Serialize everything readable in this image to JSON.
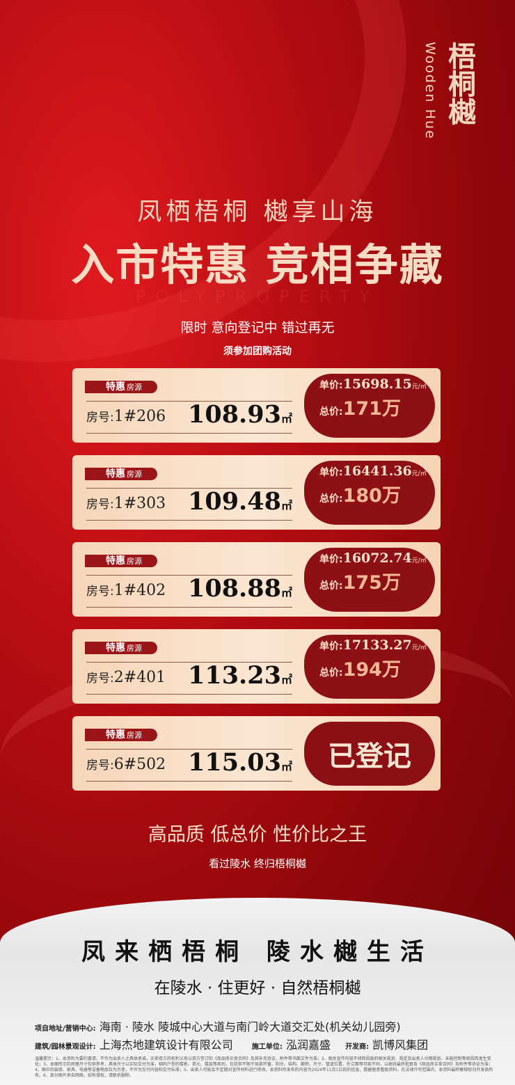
{
  "logo": {
    "english": "Wooden Hue",
    "chinese": "梧桐樾"
  },
  "headline": {
    "line1": "凤栖梧桐 樾享山海",
    "line2": "入市特惠 竞相争藏",
    "watermark": "POLYPROPERTY",
    "line3": "限时  意向登记中  错过再无",
    "line4": "须参加团购活动"
  },
  "card_labels": {
    "tag": "特惠",
    "tag_small": "房源",
    "room": "房号:",
    "unit_price": "单价:",
    "unit": "元/㎡",
    "total": "总价:",
    "area_unit": "㎡"
  },
  "listings": [
    {
      "room": "1#206",
      "area": "108.93",
      "unit_price": "15698.15",
      "total": "171万"
    },
    {
      "room": "1#303",
      "area": "109.48",
      "unit_price": "16441.36",
      "total": "180万"
    },
    {
      "room": "1#402",
      "area": "108.88",
      "unit_price": "16072.74",
      "total": "175万"
    },
    {
      "room": "2#401",
      "area": "113.23",
      "unit_price": "17133.27",
      "total": "194万"
    },
    {
      "room": "6#502",
      "area": "115.03",
      "status": "已登记"
    }
  ],
  "slogan": {
    "main": "高品质 低总价 性价比之王",
    "sub": "看过陵水  终归梧桐樾"
  },
  "footer": {
    "line1": "凤来栖梧桐  陵水樾生活",
    "line2": "在陵水 · 住更好 · 自然梧桐樾",
    "address_label": "项自地址/营销中心:",
    "address": "海南 · 陵水   陵城中心大道与南门岭大道交汇处(机关幼儿园旁)",
    "design_label": "建筑/园林景观设计:",
    "design": "上海杰地建筑设计有限公司",
    "builder_label": "施工单位:",
    "builder": "泓润嘉盛",
    "developer_label": "开发商:",
    "developer": "凯博风集团",
    "disclaimer": "温馨提示：1、本资料为要约邀请，不作为出卖人之具体承诺，买卖双方的权利义务以双方签订的《商品房买卖合同》及其补充协议、附件等书面文件为准；2、相关宣传内容不排除因政府相关规划、规定及出卖人分期规划、未能控制等原因而发生变化；3、本图所示的房屋尺寸仅供参考，具体尺寸以实际交付为准，相同户型的楼栋、单元、楼层等差别，包括但不限于局部开窗、阳台、结构、面积、尺寸、管道位置、外立面等可能不同，以政府最终批复及《商品房买卖合同》及附件等协议为准；4、图中的装修、家具、电器等设备物品仅为示意，不作为交付内容和交付标准；5、出卖人可能会不定期对宣传材料进行修改，本资料所发布的内容为2024年11月1日前的信息，数据留意看板资料，在法律许可范围内，本资料最终解释权归开发商所有。6、部分图片来自网络，如有侵权，请联系删除。"
  }
}
